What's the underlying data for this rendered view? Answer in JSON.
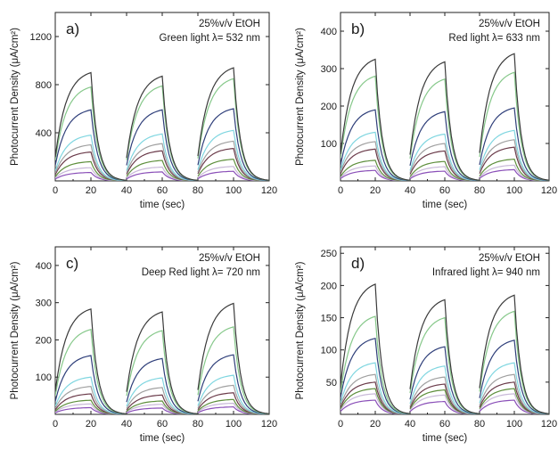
{
  "chart_data": [
    {
      "type": "line",
      "panel_label": "a)",
      "annotations": [
        "25%v/v EtOH",
        "Green light λ= 532 nm"
      ],
      "xlabel": "time (sec)",
      "ylabel": "Photocurrent Density (μA/cm²)",
      "xlim": [
        0,
        120
      ],
      "ylim": [
        0,
        1400
      ],
      "x_ticks": [
        0,
        20,
        40,
        60,
        80,
        100,
        120
      ],
      "y_ticks": [
        400,
        800,
        1200
      ],
      "on_periods": [
        [
          0,
          20
        ],
        [
          40,
          60
        ],
        [
          80,
          100
        ]
      ],
      "grid": false,
      "series": [
        {
          "color": "#3a3a3a",
          "cycle_peaks": [
            900,
            870,
            940
          ]
        },
        {
          "color": "#86c88a",
          "cycle_peaks": [
            780,
            790,
            850
          ]
        },
        {
          "color": "#2f3f7a",
          "cycle_peaks": [
            590,
            590,
            600
          ]
        },
        {
          "color": "#7fd6e0",
          "cycle_peaks": [
            380,
            390,
            420
          ]
        },
        {
          "color": "#a0a0a0",
          "cycle_peaks": [
            300,
            310,
            330
          ]
        },
        {
          "color": "#6b3b4a",
          "cycle_peaks": [
            240,
            250,
            270
          ]
        },
        {
          "color": "#5e8f3c",
          "cycle_peaks": [
            160,
            170,
            180
          ]
        },
        {
          "color": "#c8b8d8",
          "cycle_peaks": [
            110,
            115,
            120
          ]
        },
        {
          "color": "#8a4fb8",
          "cycle_peaks": [
            70,
            75,
            80
          ]
        }
      ]
    },
    {
      "type": "line",
      "panel_label": "b)",
      "annotations": [
        "25%v/v EtOH",
        "Red light λ= 633 nm"
      ],
      "xlabel": "time (sec)",
      "ylabel": "Photocurrent Density (μA/cm²)",
      "xlim": [
        0,
        120
      ],
      "ylim": [
        0,
        450
      ],
      "x_ticks": [
        0,
        20,
        40,
        60,
        80,
        100,
        120
      ],
      "y_ticks": [
        100,
        200,
        300,
        400
      ],
      "on_periods": [
        [
          0,
          20
        ],
        [
          40,
          60
        ],
        [
          80,
          100
        ]
      ],
      "grid": false,
      "series": [
        {
          "color": "#3a3a3a",
          "cycle_peaks": [
            325,
            318,
            340
          ]
        },
        {
          "color": "#86c88a",
          "cycle_peaks": [
            280,
            272,
            290
          ]
        },
        {
          "color": "#2f3f7a",
          "cycle_peaks": [
            190,
            185,
            195
          ]
        },
        {
          "color": "#7fd6e0",
          "cycle_peaks": [
            130,
            125,
            135
          ]
        },
        {
          "color": "#a0a0a0",
          "cycle_peaks": [
            105,
            100,
            110
          ]
        },
        {
          "color": "#6b3b4a",
          "cycle_peaks": [
            85,
            80,
            90
          ]
        },
        {
          "color": "#5e8f3c",
          "cycle_peaks": [
            55,
            52,
            58
          ]
        },
        {
          "color": "#c8b8d8",
          "cycle_peaks": [
            40,
            38,
            42
          ]
        },
        {
          "color": "#8a4fb8",
          "cycle_peaks": [
            28,
            26,
            30
          ]
        }
      ]
    },
    {
      "type": "line",
      "panel_label": "c)",
      "annotations": [
        "25%v/v EtOH",
        "Deep Red light λ= 720 nm"
      ],
      "xlabel": "time (sec)",
      "ylabel": "Photocurrent Density (μA/cm²)",
      "xlim": [
        0,
        120
      ],
      "ylim": [
        0,
        450
      ],
      "x_ticks": [
        0,
        20,
        40,
        60,
        80,
        100,
        120
      ],
      "y_ticks": [
        100,
        200,
        300,
        400
      ],
      "on_periods": [
        [
          0,
          20
        ],
        [
          40,
          60
        ],
        [
          80,
          100
        ]
      ],
      "grid": false,
      "series": [
        {
          "color": "#3a3a3a",
          "cycle_peaks": [
            283,
            275,
            298
          ]
        },
        {
          "color": "#86c88a",
          "cycle_peaks": [
            228,
            225,
            235
          ]
        },
        {
          "color": "#2f3f7a",
          "cycle_peaks": [
            158,
            150,
            160
          ]
        },
        {
          "color": "#7fd6e0",
          "cycle_peaks": [
            100,
            98,
            105
          ]
        },
        {
          "color": "#a0a0a0",
          "cycle_peaks": [
            75,
            72,
            78
          ]
        },
        {
          "color": "#6b3b4a",
          "cycle_peaks": [
            55,
            52,
            58
          ]
        },
        {
          "color": "#5e8f3c",
          "cycle_peaks": [
            38,
            36,
            40
          ]
        },
        {
          "color": "#c8b8d8",
          "cycle_peaks": [
            28,
            27,
            30
          ]
        },
        {
          "color": "#8a4fb8",
          "cycle_peaks": [
            18,
            17,
            20
          ]
        }
      ]
    },
    {
      "type": "line",
      "panel_label": "d)",
      "annotations": [
        "25%v/v EtOH",
        "Infrared light λ= 940 nm"
      ],
      "xlabel": "time (sec)",
      "ylabel": "Photocurrent Density (μA/cm²)",
      "xlim": [
        0,
        120
      ],
      "ylim": [
        0,
        260
      ],
      "x_ticks": [
        0,
        20,
        40,
        60,
        80,
        100,
        120
      ],
      "y_ticks": [
        50,
        100,
        150,
        200,
        250
      ],
      "on_periods": [
        [
          0,
          20
        ],
        [
          40,
          60
        ],
        [
          80,
          100
        ]
      ],
      "grid": false,
      "series": [
        {
          "color": "#3a3a3a",
          "cycle_peaks": [
            202,
            178,
            185
          ]
        },
        {
          "color": "#86c88a",
          "cycle_peaks": [
            152,
            150,
            160
          ]
        },
        {
          "color": "#2f3f7a",
          "cycle_peaks": [
            118,
            105,
            115
          ]
        },
        {
          "color": "#7fd6e0",
          "cycle_peaks": [
            80,
            75,
            80
          ]
        },
        {
          "color": "#a0a0a0",
          "cycle_peaks": [
            62,
            58,
            62
          ]
        },
        {
          "color": "#6b3b4a",
          "cycle_peaks": [
            50,
            47,
            50
          ]
        },
        {
          "color": "#5e8f3c",
          "cycle_peaks": [
            40,
            38,
            40
          ]
        },
        {
          "color": "#c8b8d8",
          "cycle_peaks": [
            32,
            30,
            32
          ]
        },
        {
          "color": "#8a4fb8",
          "cycle_peaks": [
            22,
            20,
            22
          ]
        }
      ]
    }
  ]
}
